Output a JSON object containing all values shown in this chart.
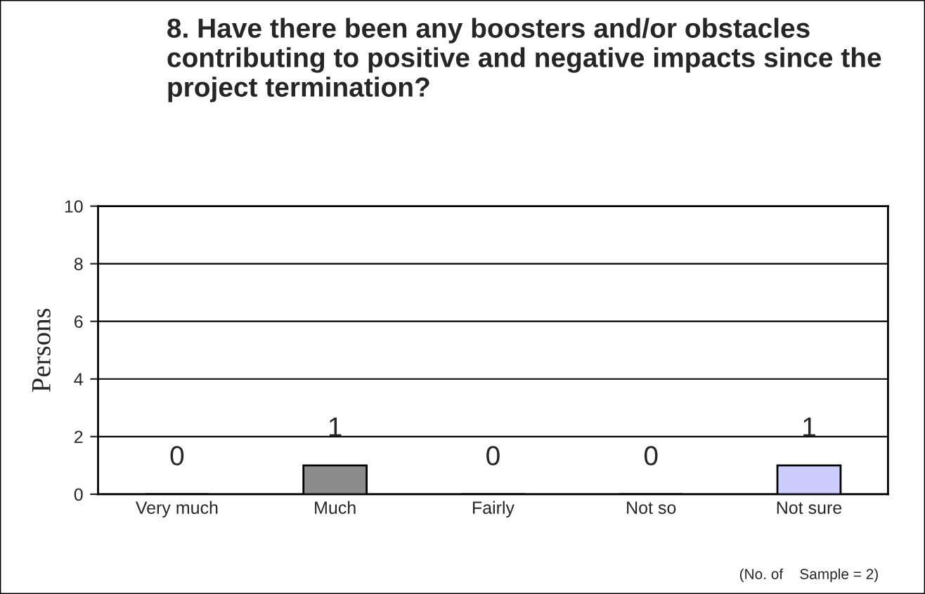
{
  "chart_data": {
    "type": "bar",
    "title": "8. Have there been any boosters and/or obstacles contributing to positive and negative impacts since the project termination?",
    "ylabel": "Persons",
    "categories": [
      "Very much",
      "Much",
      "Fairly",
      "Not so",
      "Not sure"
    ],
    "values": [
      0,
      1,
      0,
      0,
      1
    ],
    "colors": [
      "#ffffff",
      "#8c8c8c",
      "#ffffff",
      "#ffffff",
      "#ccccff"
    ],
    "ylim": [
      0,
      10
    ],
    "yticks": [
      0,
      2,
      4,
      6,
      8,
      10
    ],
    "grid": "y",
    "data_labels": true,
    "legend": false,
    "annotations": [
      "(No. of    Sample = 2)"
    ]
  }
}
